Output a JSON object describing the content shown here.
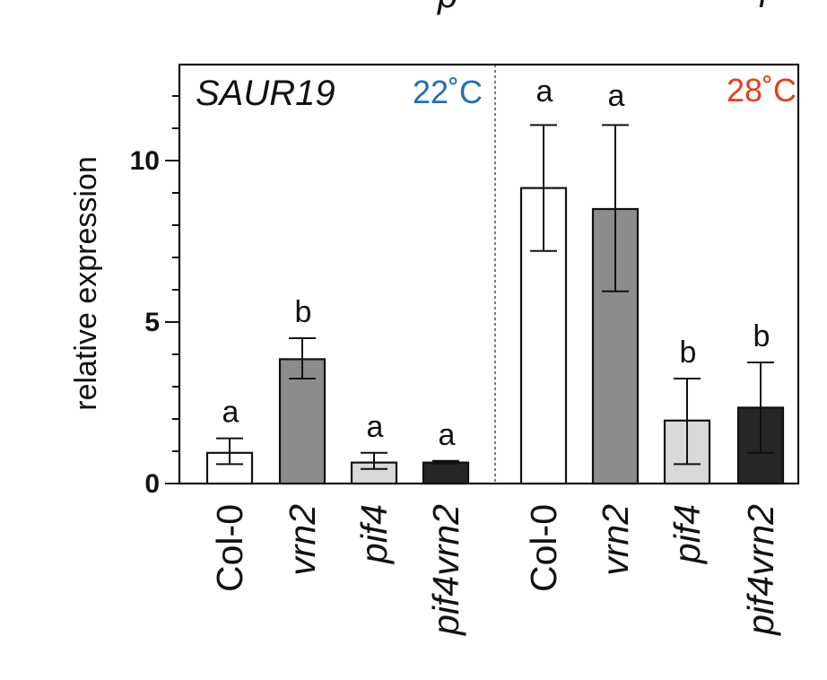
{
  "chart_data": {
    "type": "bar",
    "gene": "SAUR19",
    "ylabel": "relative expression",
    "ylim": [
      0,
      13
    ],
    "yticks": [
      {
        "value": 0,
        "label": "0"
      },
      {
        "value": 5,
        "label": "5"
      },
      {
        "value": 10,
        "label": "10"
      }
    ],
    "groups": [
      {
        "label": "22˚C",
        "color": "#1f6fb5",
        "label_position": "top-right",
        "bars": [
          {
            "category": "Col-0",
            "italic": false,
            "value": 0.95,
            "err_low": 0.6,
            "err_high": 1.4,
            "fill": "#ffffff",
            "letter": "a"
          },
          {
            "category": "vrn2",
            "italic": true,
            "value": 3.85,
            "err_low": 3.25,
            "err_high": 4.5,
            "fill": "#8c8c8c",
            "letter": "b"
          },
          {
            "category": "pif4",
            "italic": true,
            "value": 0.65,
            "err_low": 0.45,
            "err_high": 0.95,
            "fill": "#d9d9d9",
            "letter": "a"
          },
          {
            "category": "pif4vrn2",
            "italic": true,
            "value": 0.65,
            "err_low": 0.62,
            "err_high": 0.7,
            "fill": "#262626",
            "letter": "a"
          }
        ]
      },
      {
        "label": "28˚C",
        "color": "#e0401b",
        "label_position": "top-right",
        "bars": [
          {
            "category": "Col-0",
            "italic": false,
            "value": 9.15,
            "err_low": 7.2,
            "err_high": 11.1,
            "fill": "#ffffff",
            "letter": "a"
          },
          {
            "category": "vrn2",
            "italic": true,
            "value": 8.5,
            "err_low": 5.95,
            "err_high": 11.1,
            "fill": "#8c8c8c",
            "letter": "a"
          },
          {
            "category": "pif4",
            "italic": true,
            "value": 1.95,
            "err_low": 0.6,
            "err_high": 3.25,
            "fill": "#d9d9d9",
            "letter": "b"
          },
          {
            "category": "pif4vrn2",
            "italic": true,
            "value": 2.35,
            "err_low": 0.95,
            "err_high": 3.75,
            "fill": "#262626",
            "letter": "b"
          }
        ]
      }
    ]
  }
}
